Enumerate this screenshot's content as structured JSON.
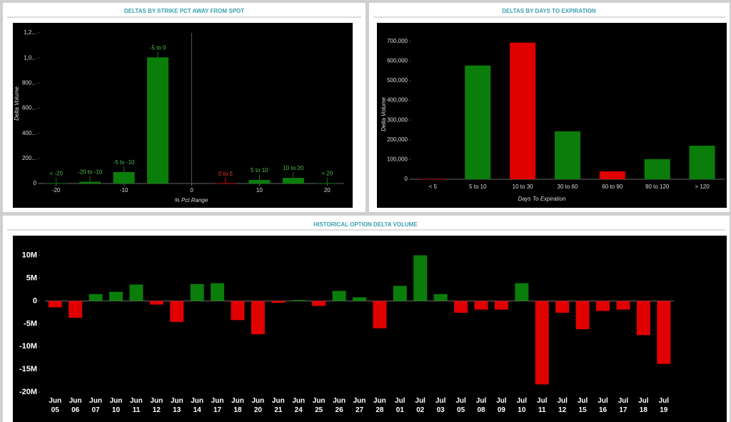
{
  "chart_data": [
    {
      "type": "bar",
      "title": "DELTAS BY STRIKE PCT AWAY FROM SPOT",
      "x_label": "% Pct Range",
      "y_label": "Delta Volume",
      "categories": [
        "< -20",
        "-20 to -10",
        "-5 to -10",
        "-5 to 0",
        "0 to 5",
        "5 to 10",
        "10 to 20",
        "> 20"
      ],
      "x": [
        -20,
        -15,
        -10,
        -5,
        5,
        10,
        15,
        20
      ],
      "values": [
        3000,
        14000,
        91000,
        1005000,
        2000,
        28000,
        45000,
        3000
      ],
      "colors": [
        "#0a7d0a",
        "#0a7d0a",
        "#0a7d0a",
        "#0a7d0a",
        "#e00000",
        "#0a7d0a",
        "#0a7d0a",
        "#0a7d0a"
      ],
      "xlim": [
        -22.5,
        22.5
      ],
      "xticks": [
        -20,
        -10,
        0,
        10,
        20
      ],
      "ylim": [
        0,
        1200000
      ],
      "yticks": [
        0,
        {
          "value": 200000,
          "label": "200..."
        },
        {
          "value": 400000,
          "label": "400..."
        },
        {
          "value": 600000,
          "label": "600..."
        },
        {
          "value": 800000,
          "label": "800..."
        },
        {
          "value": 1000000,
          "label": "1,0..."
        },
        {
          "value": 1200000,
          "label": "1,2..."
        }
      ],
      "grid": false
    },
    {
      "type": "bar",
      "title": "DELTAS BY DAYS TO EXPIRATION",
      "x_label": "Days To Expiration",
      "y_label": "Delta Volume",
      "categories": [
        "< 5",
        "5 to 10",
        "10 to 30",
        "30 to 60",
        "60 to 90",
        "90 to 120",
        "> 120"
      ],
      "values": [
        1000,
        577000,
        693000,
        243000,
        40000,
        102000,
        170000
      ],
      "colors": [
        "#e00000",
        "#0a7d0a",
        "#e00000",
        "#0a7d0a",
        "#e00000",
        "#0a7d0a",
        "#0a7d0a"
      ],
      "ylim": [
        0,
        750000
      ],
      "yticks": [
        0,
        {
          "value": 100000,
          "label": "100,000"
        },
        {
          "value": 200000,
          "label": "200,000"
        },
        {
          "value": 300000,
          "label": "300,000"
        },
        {
          "value": 400000,
          "label": "400,000"
        },
        {
          "value": 500000,
          "label": "500,000"
        },
        {
          "value": 600000,
          "label": "600,000"
        },
        {
          "value": 700000,
          "label": "700,000"
        }
      ],
      "grid": false
    },
    {
      "type": "bar",
      "title": "HISTORICAL OPTION DELTA VOLUME",
      "categories": [
        "Jun 05",
        "Jun 06",
        "Jun 07",
        "Jun 10",
        "Jun 11",
        "Jun 12",
        "Jun 13",
        "Jun 14",
        "Jun 17",
        "Jun 18",
        "Jun 20",
        "Jun 21",
        "Jun 24",
        "Jun 25",
        "Jun 26",
        "Jun 27",
        "Jun 28",
        "Jul 01",
        "Jul 02",
        "Jul 03",
        "Jul 05",
        "Jul 08",
        "Jul 09",
        "Jul 10",
        "Jul 11",
        "Jul 12",
        "Jul 15",
        "Jul 16",
        "Jul 17",
        "Jul 18",
        "Jul 19"
      ],
      "values": [
        -1400000,
        -3700000,
        1500000,
        2000000,
        3600000,
        -800000,
        -4600000,
        3700000,
        3900000,
        -4200000,
        -7300000,
        -400000,
        200000,
        -1100000,
        2200000,
        800000,
        -6000000,
        3300000,
        10000000,
        1500000,
        -2600000,
        -1900000,
        -1900000,
        3900000,
        -18300000,
        -2600000,
        -6200000,
        -2200000,
        -1900000,
        -7500000,
        -13800000
      ],
      "positive_color": "#0a7d0a",
      "negative_color": "#e00000",
      "ylim": [
        -22000000,
        14000000
      ],
      "yticks": [
        {
          "value": -20000000,
          "label": "-20M"
        },
        {
          "value": -15000000,
          "label": "-15M"
        },
        {
          "value": -10000000,
          "label": "-10M"
        },
        {
          "value": -5000000,
          "label": "-5M"
        },
        0,
        {
          "value": 5000000,
          "label": "5M"
        },
        {
          "value": 10000000,
          "label": "10M"
        }
      ],
      "grid": false
    }
  ]
}
